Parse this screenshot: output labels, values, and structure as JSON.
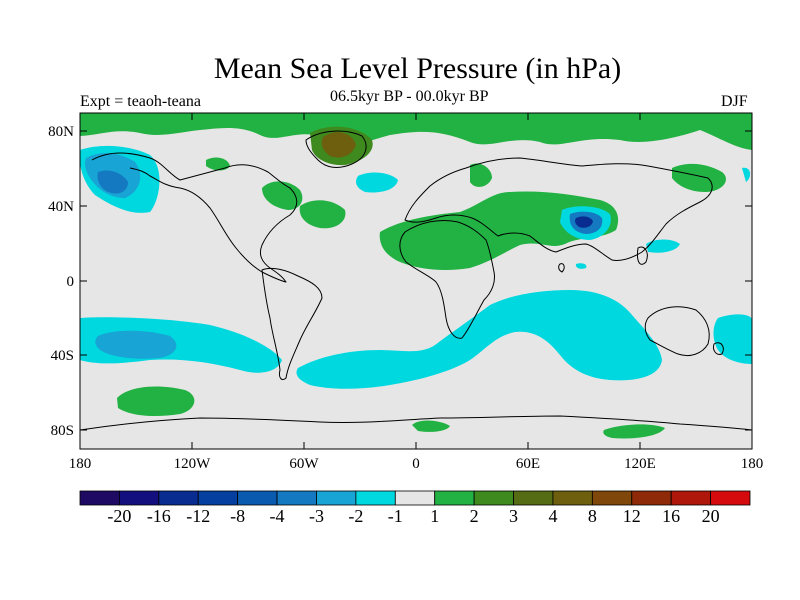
{
  "title": "Mean Sea Level Pressure (in hPa)",
  "subtitle_left": "Expt = teaoh-teana",
  "subtitle_center": "06.5kyr BP - 00.0kyr BP",
  "subtitle_right": "DJF",
  "lat_labels": [
    "80N",
    "40N",
    "0",
    "40S",
    "80S"
  ],
  "lon_labels": [
    "180",
    "120W",
    "60W",
    "0",
    "60E",
    "120E",
    "180"
  ],
  "colorbar": {
    "colors": [
      "#1e0a63",
      "#140f7e",
      "#082c8f",
      "#053fa0",
      "#0a5ab0",
      "#1479c1",
      "#18a4d4",
      "#00d8e0",
      "#e6e6e6",
      "#22b243",
      "#3e8a1e",
      "#556b14",
      "#6e5f0e",
      "#80470b",
      "#8f2a08",
      "#ae1709",
      "#d40a0c"
    ],
    "labels": [
      "-20",
      "-16",
      "-12",
      "-8",
      "-4",
      "-3",
      "-2",
      "-1",
      "1",
      "2",
      "3",
      "4",
      "8",
      "12",
      "16",
      "20"
    ]
  },
  "map_colors": {
    "neutral": "#e6e6e6",
    "green": "#22b243",
    "dark_green": "#3e8a1e",
    "brown": "#6e5f0e",
    "cyan": "#00d8e0",
    "light_blue": "#18a4d4",
    "blue": "#1479c1",
    "dark_blue": "#0a5ab0",
    "coast": "#000000"
  }
}
